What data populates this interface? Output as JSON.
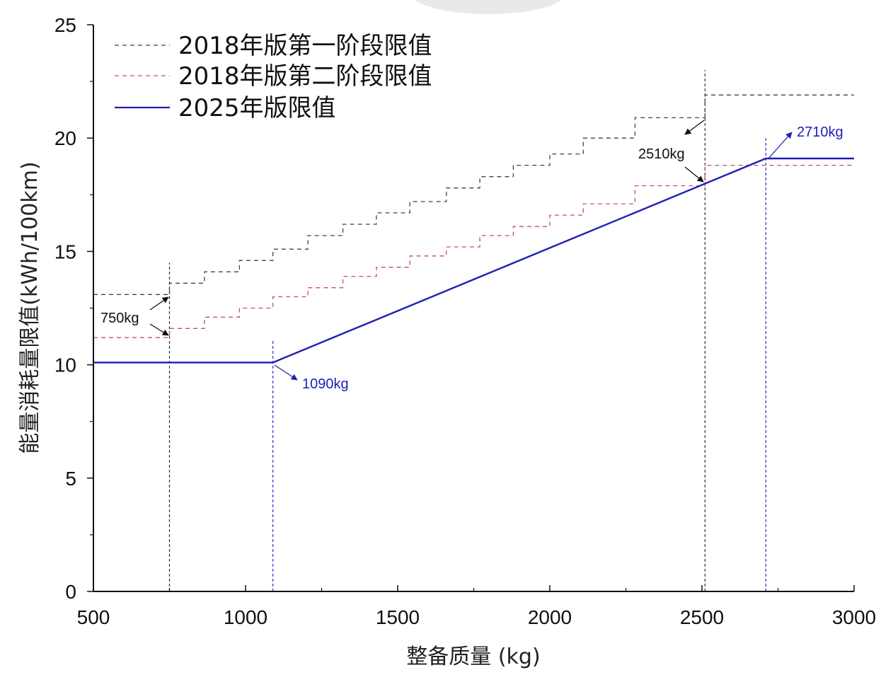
{
  "chart_data": {
    "type": "line",
    "x": {
      "label": "整备质量 (kg)",
      "lim": [
        500,
        3000
      ],
      "ticks": [
        500,
        1000,
        1500,
        2000,
        2500,
        3000
      ]
    },
    "y": {
      "label": "能量消耗量限值(kWh/100km)",
      "lim": [
        0,
        25
      ],
      "ticks": [
        0,
        5,
        10,
        15,
        20,
        25
      ]
    },
    "legend_position": "top-left",
    "series": [
      {
        "name": "2018年版第一阶段限值",
        "style": "dashed",
        "color": "#444444",
        "points": [
          [
            500,
            13.1
          ],
          [
            750,
            13.1
          ],
          [
            750,
            13.6
          ],
          [
            865,
            13.6
          ],
          [
            865,
            14.1
          ],
          [
            980,
            14.1
          ],
          [
            980,
            14.6
          ],
          [
            1090,
            14.6
          ],
          [
            1090,
            15.1
          ],
          [
            1205,
            15.1
          ],
          [
            1205,
            15.7
          ],
          [
            1320,
            15.7
          ],
          [
            1320,
            16.2
          ],
          [
            1430,
            16.2
          ],
          [
            1430,
            16.7
          ],
          [
            1540,
            16.7
          ],
          [
            1540,
            17.2
          ],
          [
            1660,
            17.2
          ],
          [
            1660,
            17.8
          ],
          [
            1770,
            17.8
          ],
          [
            1770,
            18.3
          ],
          [
            1880,
            18.3
          ],
          [
            1880,
            18.8
          ],
          [
            2000,
            18.8
          ],
          [
            2000,
            19.3
          ],
          [
            2110,
            19.3
          ],
          [
            2110,
            20.0
          ],
          [
            2280,
            20.0
          ],
          [
            2280,
            20.9
          ],
          [
            2510,
            20.9
          ],
          [
            2510,
            21.9
          ],
          [
            3000,
            21.9
          ]
        ]
      },
      {
        "name": "2018年版第二阶段限值",
        "style": "dashed",
        "color": "#c0506a",
        "points": [
          [
            500,
            11.2
          ],
          [
            750,
            11.2
          ],
          [
            750,
            11.6
          ],
          [
            865,
            11.6
          ],
          [
            865,
            12.1
          ],
          [
            980,
            12.1
          ],
          [
            980,
            12.5
          ],
          [
            1090,
            12.5
          ],
          [
            1090,
            13.0
          ],
          [
            1205,
            13.0
          ],
          [
            1205,
            13.4
          ],
          [
            1320,
            13.4
          ],
          [
            1320,
            13.9
          ],
          [
            1430,
            13.9
          ],
          [
            1430,
            14.3
          ],
          [
            1540,
            14.3
          ],
          [
            1540,
            14.8
          ],
          [
            1660,
            14.8
          ],
          [
            1660,
            15.2
          ],
          [
            1770,
            15.2
          ],
          [
            1770,
            15.7
          ],
          [
            1880,
            15.7
          ],
          [
            1880,
            16.1
          ],
          [
            2000,
            16.1
          ],
          [
            2000,
            16.6
          ],
          [
            2110,
            16.6
          ],
          [
            2110,
            17.1
          ],
          [
            2280,
            17.1
          ],
          [
            2280,
            17.9
          ],
          [
            2510,
            17.9
          ],
          [
            2510,
            18.8
          ],
          [
            3000,
            18.8
          ]
        ]
      },
      {
        "name": "2025年版限值",
        "style": "solid",
        "color": "#1f1fb4",
        "points": [
          [
            500,
            10.1
          ],
          [
            1090,
            10.1
          ],
          [
            2710,
            19.1
          ],
          [
            3000,
            19.1
          ]
        ]
      }
    ],
    "vlines": [
      {
        "x": 750,
        "y_top": 14.5,
        "color": "#333333"
      },
      {
        "x": 1090,
        "y_top": 11.1,
        "color": "#2b2bc8"
      },
      {
        "x": 2510,
        "y_top": 23.0,
        "color": "#333333"
      },
      {
        "x": 2710,
        "y_top": 20.0,
        "color": "#2b2bc8"
      }
    ],
    "annotations": [
      {
        "text": "750kg",
        "color": "#111111"
      },
      {
        "text": "1090kg",
        "color": "#1f1fb4"
      },
      {
        "text": "2510kg",
        "color": "#111111"
      },
      {
        "text": "2710kg",
        "color": "#1f1fb4"
      }
    ]
  }
}
